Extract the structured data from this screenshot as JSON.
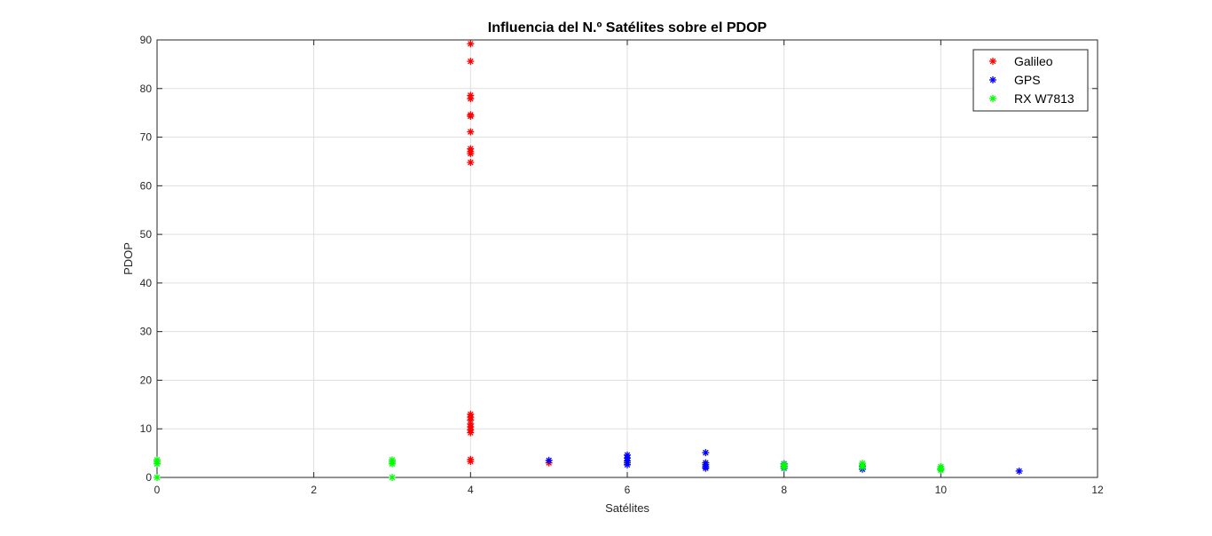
{
  "chart_data": {
    "type": "scatter",
    "title": "Influencia del N.º Satélites sobre el PDOP",
    "xlabel": "Satélites",
    "ylabel": "PDOP",
    "xlim": [
      0,
      12
    ],
    "ylim": [
      0,
      90
    ],
    "xticks": [
      0,
      2,
      4,
      6,
      8,
      10,
      12
    ],
    "yticks": [
      0,
      10,
      20,
      30,
      40,
      50,
      60,
      70,
      80,
      90
    ],
    "grid": true,
    "legend_position": "top-right",
    "marker": "asterisk",
    "series": [
      {
        "name": "Galileo",
        "color": "#ff0000",
        "points": [
          [
            4,
            89.2
          ],
          [
            4,
            85.6
          ],
          [
            4,
            78.6
          ],
          [
            4,
            77.9
          ],
          [
            4,
            74.6
          ],
          [
            4,
            74.3
          ],
          [
            4,
            71.1
          ],
          [
            4,
            67.6
          ],
          [
            4,
            67.0
          ],
          [
            4,
            66.6
          ],
          [
            4,
            64.8
          ],
          [
            4,
            13.0
          ],
          [
            4,
            12.4
          ],
          [
            4,
            11.8
          ],
          [
            4,
            11.0
          ],
          [
            4,
            10.4
          ],
          [
            4,
            9.8
          ],
          [
            4,
            9.2
          ],
          [
            4,
            3.7
          ],
          [
            4,
            3.3
          ],
          [
            5,
            3.0
          ]
        ]
      },
      {
        "name": "GPS",
        "color": "#0000ff",
        "points": [
          [
            5,
            3.5
          ],
          [
            6,
            4.6
          ],
          [
            6,
            4.0
          ],
          [
            6,
            3.4
          ],
          [
            6,
            3.0
          ],
          [
            6,
            2.6
          ],
          [
            7,
            5.1
          ],
          [
            7,
            3.0
          ],
          [
            7,
            2.6
          ],
          [
            7,
            2.2
          ],
          [
            7,
            1.9
          ],
          [
            8,
            2.8
          ],
          [
            8,
            2.3
          ],
          [
            8,
            1.9
          ],
          [
            9,
            2.2
          ],
          [
            9,
            1.7
          ],
          [
            10,
            1.8
          ],
          [
            11,
            1.3
          ]
        ]
      },
      {
        "name": "RX W7813",
        "color": "#00ff00",
        "points": [
          [
            0,
            3.6
          ],
          [
            0,
            3.2
          ],
          [
            0,
            2.8
          ],
          [
            0,
            0.0
          ],
          [
            3,
            3.6
          ],
          [
            3,
            3.2
          ],
          [
            3,
            2.8
          ],
          [
            3,
            0.0
          ],
          [
            8,
            2.7
          ],
          [
            8,
            2.4
          ],
          [
            8,
            2.0
          ],
          [
            9,
            2.9
          ],
          [
            9,
            2.5
          ],
          [
            9,
            2.1
          ],
          [
            10,
            2.2
          ],
          [
            10,
            1.8
          ],
          [
            10,
            1.5
          ]
        ]
      }
    ]
  }
}
